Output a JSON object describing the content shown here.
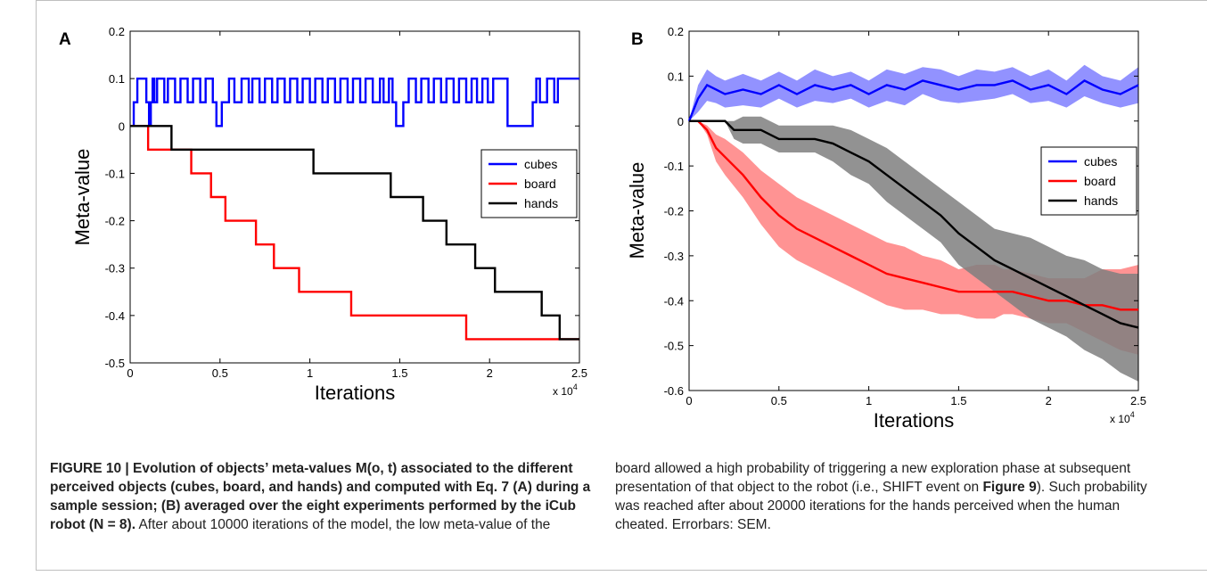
{
  "chart_data": [
    {
      "panel": "A",
      "type": "line",
      "xlabel": "Iterations",
      "ylabel": "Meta-value",
      "xlim": [
        0,
        25000
      ],
      "ylim": [
        -0.5,
        0.2
      ],
      "xticks": [
        0,
        5000,
        10000,
        15000,
        20000,
        25000
      ],
      "xtick_labels": [
        "0",
        "0.5",
        "1",
        "1.5",
        "2",
        "2.5"
      ],
      "yticks": [
        -0.5,
        -0.4,
        -0.3,
        -0.2,
        -0.1,
        0,
        0.1,
        0.2
      ],
      "ytick_labels": [
        "-0.5",
        "-0.4",
        "-0.3",
        "-0.2",
        "-0.1",
        "0",
        "0.1",
        "0.2"
      ],
      "x_multiplier": "x 10",
      "x_multiplier_exp": "4",
      "legend": "right",
      "series": [
        {
          "name": "cubes",
          "color": "#0000ff",
          "step": true,
          "x": [
            0,
            200,
            400,
            900,
            1050,
            1150,
            1250,
            1350,
            1500,
            1600,
            1900,
            2100,
            2500,
            2800,
            3200,
            3500,
            3900,
            4200,
            4600,
            4800,
            5100,
            5500,
            5800,
            6200,
            6600,
            6800,
            7200,
            7500,
            7900,
            8200,
            8600,
            8900,
            9300,
            9600,
            10000,
            10300,
            10700,
            11000,
            11400,
            11700,
            12100,
            12400,
            12800,
            13100,
            13500,
            13900,
            14100,
            14400,
            14600,
            14800,
            15200,
            15500,
            15900,
            16200,
            16600,
            16900,
            17300,
            17600,
            18000,
            18300,
            18700,
            19000,
            19300,
            19600,
            19900,
            20200,
            21000,
            22400,
            22600,
            22800,
            23200,
            23600,
            23800,
            25000
          ],
          "y": [
            0,
            0.05,
            0.1,
            0.05,
            0,
            0.05,
            0.1,
            0.05,
            0.1,
            0.1,
            0.05,
            0.1,
            0.05,
            0.1,
            0.05,
            0.1,
            0.05,
            0.1,
            0.05,
            0,
            0.05,
            0.1,
            0.05,
            0.1,
            0.05,
            0.1,
            0.05,
            0.1,
            0.05,
            0.1,
            0.05,
            0.1,
            0.05,
            0.1,
            0.05,
            0.1,
            0.05,
            0.1,
            0.05,
            0.1,
            0.05,
            0.1,
            0.05,
            0.1,
            0.05,
            0.1,
            0.05,
            0.1,
            0.05,
            0,
            0.05,
            0.1,
            0.05,
            0.1,
            0.05,
            0.1,
            0.05,
            0.1,
            0.05,
            0.1,
            0.05,
            0.1,
            0.05,
            0.1,
            0.05,
            0.1,
            0,
            0.05,
            0.1,
            0.05,
            0.1,
            0.05,
            0.1,
            0.1
          ]
        },
        {
          "name": "board",
          "color": "#ff0000",
          "step": true,
          "x": [
            0,
            1000,
            2400,
            3400,
            4500,
            5300,
            7000,
            8000,
            9400,
            12300,
            18700,
            25000
          ],
          "y": [
            0,
            -0.05,
            -0.05,
            -0.1,
            -0.15,
            -0.2,
            -0.25,
            -0.3,
            -0.35,
            -0.4,
            -0.45,
            -0.45
          ]
        },
        {
          "name": "hands",
          "color": "#000000",
          "step": true,
          "x": [
            0,
            2300,
            10200,
            14500,
            16300,
            17600,
            19200,
            20300,
            22900,
            23900,
            25000
          ],
          "y": [
            0,
            -0.05,
            -0.1,
            -0.15,
            -0.2,
            -0.25,
            -0.3,
            -0.35,
            -0.4,
            -0.45,
            -0.45
          ]
        }
      ]
    },
    {
      "panel": "B",
      "type": "line",
      "xlabel": "Iterations",
      "ylabel": "Meta-value",
      "xlim": [
        0,
        25000
      ],
      "ylim": [
        -0.6,
        0.2
      ],
      "xticks": [
        0,
        5000,
        10000,
        15000,
        20000,
        25000
      ],
      "xtick_labels": [
        "0",
        "0.5",
        "1",
        "1.5",
        "2",
        "2.5"
      ],
      "yticks": [
        -0.6,
        -0.5,
        -0.4,
        -0.3,
        -0.2,
        -0.1,
        0,
        0.1,
        0.2
      ],
      "ytick_labels": [
        "-0.6",
        "-0.5",
        "-0.4",
        "-0.3",
        "-0.2",
        "-0.1",
        "0",
        "0.1",
        "0.2"
      ],
      "x_multiplier": "x 10",
      "x_multiplier_exp": "4",
      "legend": "right",
      "error_bars": "shaded band (SEM)",
      "series": [
        {
          "name": "cubes",
          "color": "#0000ff",
          "band_color": "#7f7fff",
          "x": [
            0,
            500,
            1000,
            1500,
            2000,
            3000,
            4000,
            5000,
            6000,
            7000,
            8000,
            9000,
            10000,
            11000,
            12000,
            13000,
            14000,
            15000,
            16000,
            17000,
            18000,
            19000,
            20000,
            21000,
            22000,
            23000,
            24000,
            25000
          ],
          "y": [
            0,
            0.05,
            0.08,
            0.07,
            0.06,
            0.07,
            0.06,
            0.08,
            0.06,
            0.08,
            0.07,
            0.08,
            0.06,
            0.08,
            0.07,
            0.09,
            0.08,
            0.07,
            0.08,
            0.08,
            0.09,
            0.07,
            0.08,
            0.06,
            0.09,
            0.07,
            0.06,
            0.08
          ],
          "err": [
            0,
            0.03,
            0.035,
            0.03,
            0.03,
            0.035,
            0.03,
            0.03,
            0.03,
            0.035,
            0.03,
            0.03,
            0.03,
            0.035,
            0.035,
            0.03,
            0.035,
            0.03,
            0.035,
            0.03,
            0.03,
            0.03,
            0.035,
            0.03,
            0.035,
            0.03,
            0.03,
            0.04
          ]
        },
        {
          "name": "board",
          "color": "#ff0000",
          "band_color": "#ff8080",
          "x": [
            0,
            500,
            1000,
            1500,
            2000,
            3000,
            4000,
            5000,
            6000,
            7000,
            8000,
            9000,
            10000,
            11000,
            12000,
            13000,
            14000,
            15000,
            16000,
            17000,
            17500,
            18000,
            19000,
            20000,
            21000,
            22000,
            23000,
            24000,
            25000
          ],
          "y": [
            0,
            0,
            -0.02,
            -0.06,
            -0.08,
            -0.12,
            -0.17,
            -0.21,
            -0.24,
            -0.26,
            -0.28,
            -0.3,
            -0.32,
            -0.34,
            -0.35,
            -0.36,
            -0.37,
            -0.38,
            -0.38,
            -0.38,
            -0.38,
            -0.38,
            -0.39,
            -0.4,
            -0.4,
            -0.41,
            -0.41,
            -0.42,
            -0.42
          ],
          "err": [
            0,
            0,
            0.01,
            0.03,
            0.04,
            0.05,
            0.06,
            0.07,
            0.07,
            0.07,
            0.07,
            0.07,
            0.07,
            0.07,
            0.07,
            0.06,
            0.06,
            0.05,
            0.06,
            0.06,
            0.05,
            0.05,
            0.05,
            0.05,
            0.05,
            0.06,
            0.08,
            0.09,
            0.1
          ]
        },
        {
          "name": "hands",
          "color": "#000000",
          "band_color": "#7f7f7f",
          "x": [
            0,
            1000,
            2000,
            2500,
            3000,
            4000,
            5000,
            6000,
            7000,
            8000,
            9000,
            10000,
            11000,
            12000,
            13000,
            14000,
            15000,
            16000,
            17000,
            18000,
            19000,
            20000,
            21000,
            22000,
            23000,
            24000,
            25000
          ],
          "y": [
            0,
            0,
            0,
            -0.02,
            -0.02,
            -0.02,
            -0.04,
            -0.04,
            -0.04,
            -0.05,
            -0.07,
            -0.09,
            -0.12,
            -0.15,
            -0.18,
            -0.21,
            -0.25,
            -0.28,
            -0.31,
            -0.33,
            -0.35,
            -0.37,
            -0.39,
            -0.41,
            -0.43,
            -0.45,
            -0.46
          ],
          "err": [
            0,
            0,
            0,
            0.02,
            0.03,
            0.03,
            0.03,
            0.03,
            0.03,
            0.04,
            0.05,
            0.05,
            0.06,
            0.06,
            0.06,
            0.06,
            0.07,
            0.07,
            0.07,
            0.08,
            0.09,
            0.09,
            0.09,
            0.1,
            0.1,
            0.11,
            0.12
          ]
        }
      ]
    }
  ],
  "caption": {
    "left_bold": "FIGURE 10 | Evolution of objects’ meta-values M(o, t) associated to the different perceived objects (cubes, board, and hands) and computed with Eq. 7 (A) during a sample session; (B) averaged over the eight experiments performed by the iCub robot (N = 8).",
    "left_text": "After about 10000 iterations of the model, the low meta-value of the",
    "right_text_1": "board allowed a high probability of triggering a new exploration phase at subsequent presentation of that object to the robot (i.e., SHIFT event on ",
    "right_bold_ref": "Figure 9",
    "right_text_2": "). Such probability was reached after about 20000 iterations for the hands perceived when the human cheated. Errorbars: SEM."
  }
}
